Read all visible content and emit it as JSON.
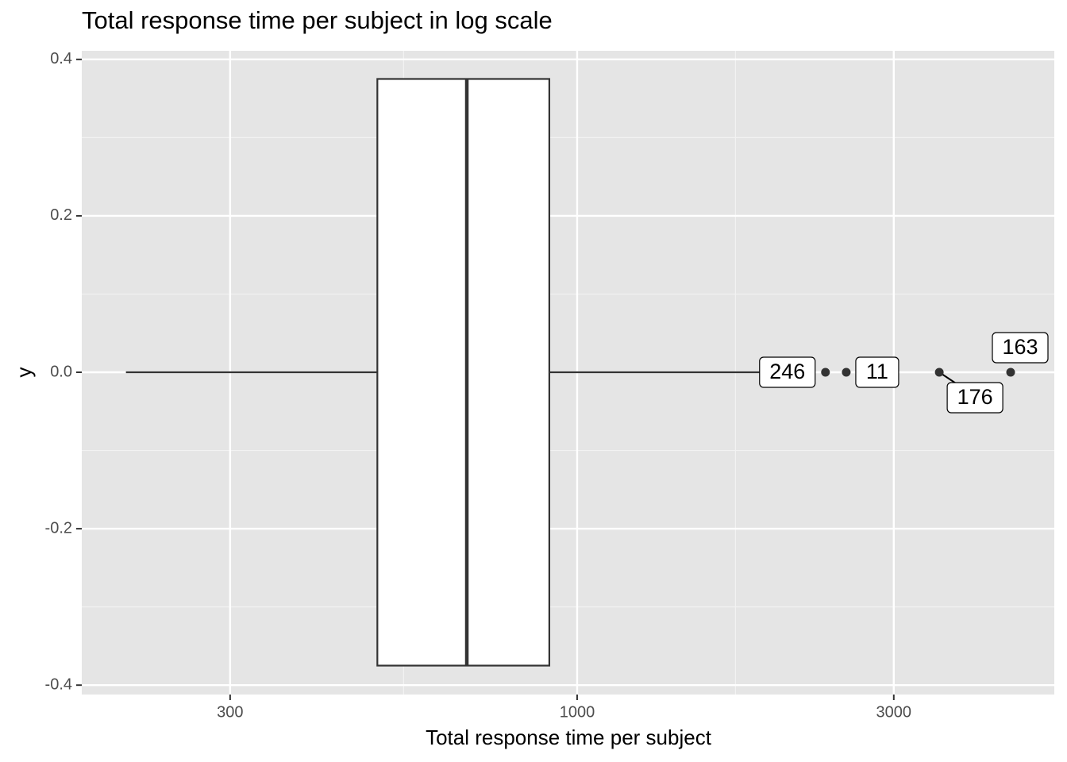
{
  "chart_data": {
    "type": "boxplot",
    "title": "Total response time per subject in log scale",
    "x_label": "Total response time per subject",
    "y_label": "y",
    "log_x": true,
    "grid": true,
    "xlim": [
      179.3,
      5236
    ],
    "xticks": [
      300,
      1000,
      3000
    ],
    "ylim": [
      -0.412,
      0.411
    ],
    "yticks": [
      0.4,
      0.2,
      {
        "value": 0,
        "label": "0.0"
      },
      -0.2,
      -0.4
    ],
    "box": {
      "position": 0,
      "half_width": 0.375,
      "whisker_low": 209,
      "q1": 500,
      "median": 682,
      "q3": 908,
      "whisker_high": 2100
    },
    "outliers": [
      {
        "value": 2367,
        "label": "246"
      },
      {
        "value": 2544,
        "label": "11"
      },
      {
        "value": 3513,
        "label": "176"
      },
      {
        "value": 4500,
        "label": "163"
      }
    ]
  }
}
